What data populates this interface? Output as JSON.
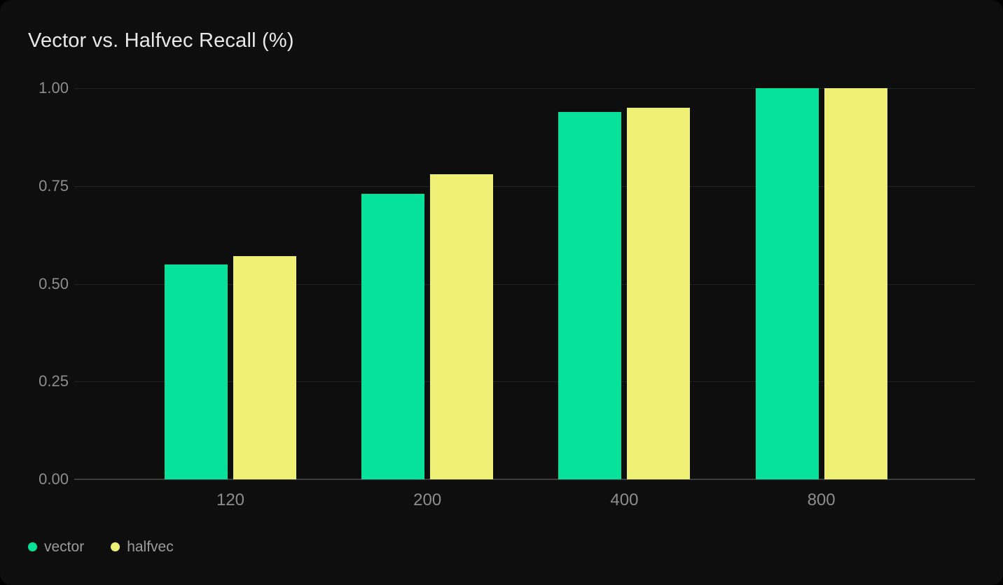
{
  "colors": {
    "page_background": "#000000",
    "card_background": "#0e0e0e",
    "title_text": "#e8e8e8",
    "tick_text": "#8d8d8d",
    "legend_text": "#9c9c9c",
    "gridline": "#232323",
    "axis_line": "#3c3c3c"
  },
  "chart_data": {
    "type": "bar",
    "title": "Vector vs. Halfvec Recall (%)",
    "categories": [
      "120",
      "200",
      "400",
      "800"
    ],
    "series": [
      {
        "name": "vector",
        "color": "#06e29a",
        "values": [
          0.55,
          0.73,
          0.94,
          1.0
        ]
      },
      {
        "name": "halfvec",
        "color": "#eef075",
        "values": [
          0.57,
          0.78,
          0.95,
          1.0
        ]
      }
    ],
    "xlabel": "",
    "ylabel": "",
    "ylim": [
      0,
      1
    ],
    "y_ticks": [
      0,
      0.25,
      0.5,
      0.75,
      1.0
    ],
    "y_tick_labels": [
      "0.00",
      "0.25",
      "0.50",
      "0.75",
      "1.00"
    ],
    "grid": true,
    "legend_position": "bottom-left"
  }
}
